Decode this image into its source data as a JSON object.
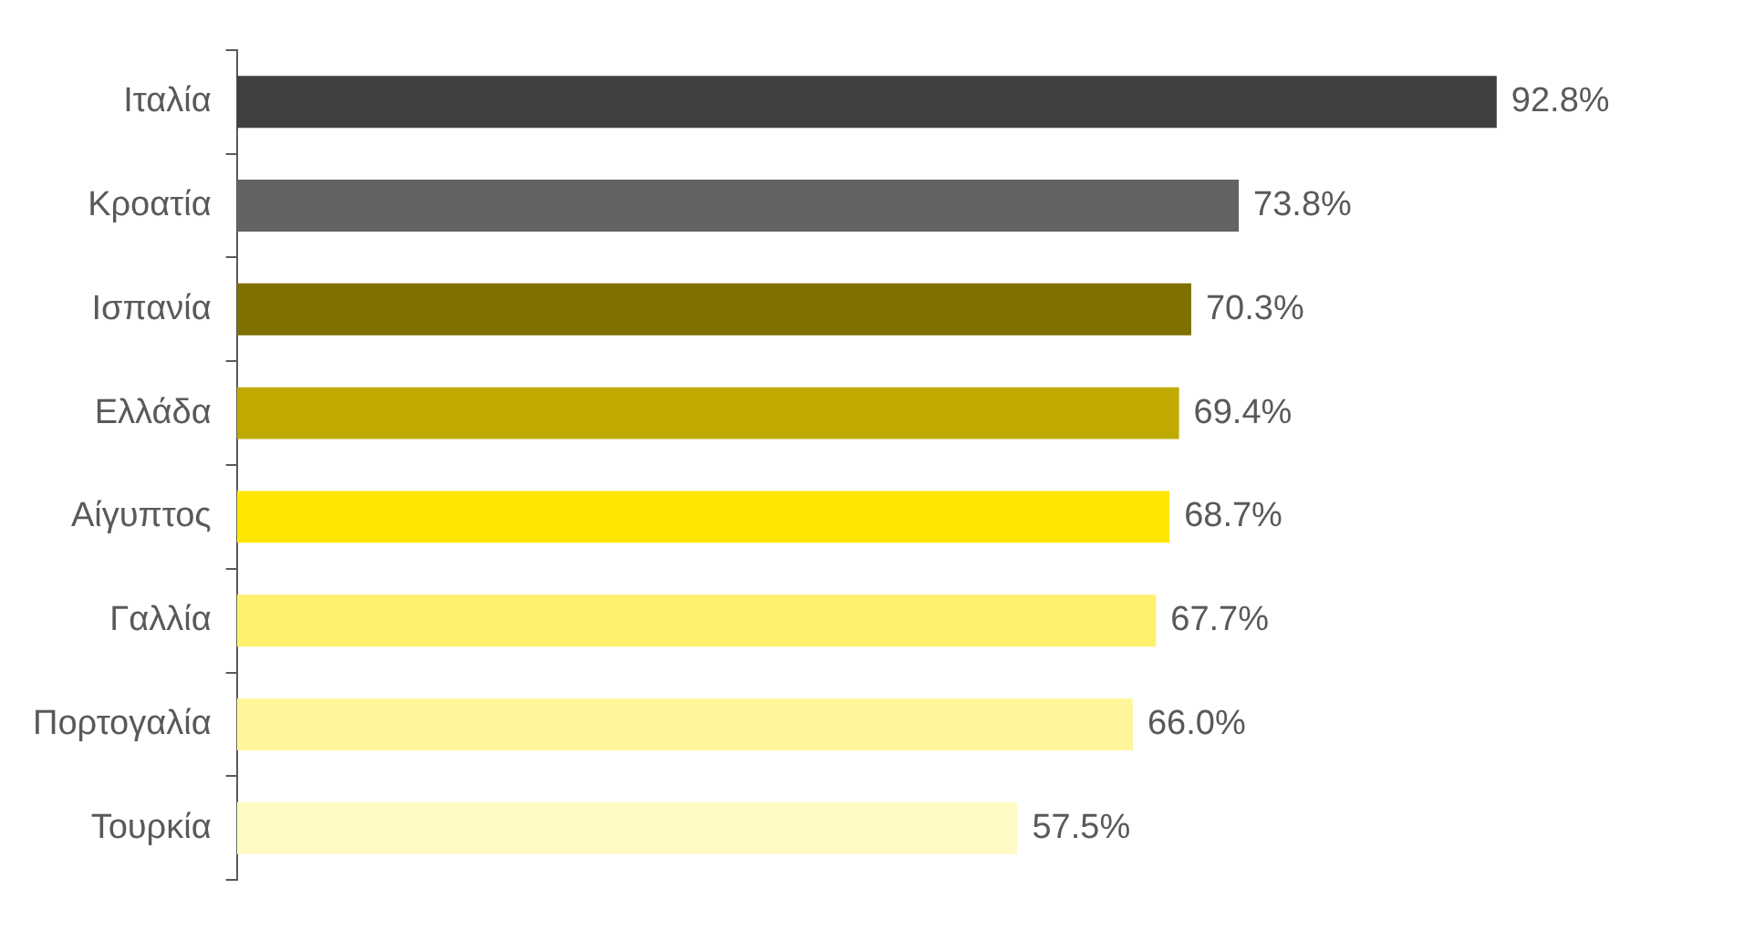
{
  "chart_data": {
    "type": "bar",
    "orientation": "horizontal",
    "categories": [
      "Ιταλία",
      "Κροατία",
      "Ισπανία",
      "Ελλάδα",
      "Αίγυπτος",
      "Γαλλία",
      "Πορτογαλία",
      "Τουρκία"
    ],
    "values": [
      92.8,
      73.8,
      70.3,
      69.4,
      68.7,
      67.7,
      66.0,
      57.5
    ],
    "value_labels": [
      "92.8%",
      "73.8%",
      "70.3%",
      "69.4%",
      "68.7%",
      "67.7%",
      "66.0%",
      "57.5%"
    ],
    "colors": [
      "#404040",
      "#636363",
      "#7f7000",
      "#c0aa00",
      "#ffe600",
      "#fff06e",
      "#fff59b",
      "#fff9c4"
    ]
  }
}
